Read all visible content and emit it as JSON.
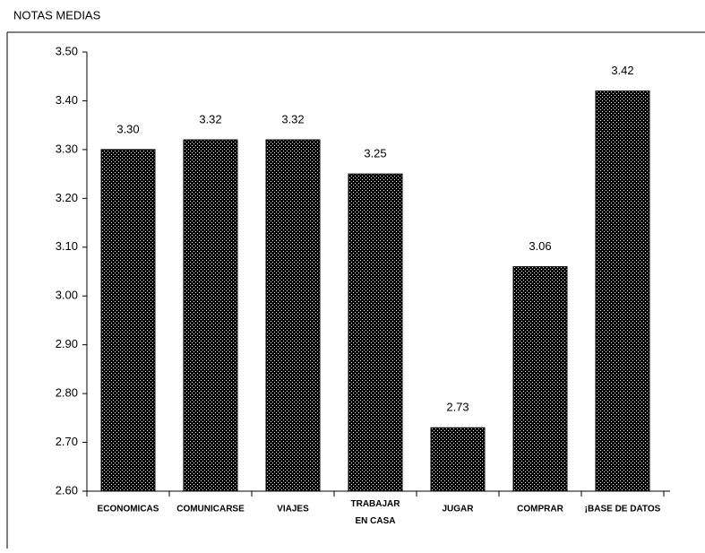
{
  "chart_data": {
    "type": "bar",
    "title": "NOTAS MEDIAS",
    "categories": [
      "ECONOMICAS",
      "COMUNICARSE",
      "VIAJES",
      "TRABAJAR\nEN CASA",
      "JUGAR",
      "COMPRAR",
      "¡BASE DE DATOS"
    ],
    "values": [
      3.3,
      3.32,
      3.32,
      3.25,
      2.73,
      3.06,
      3.42
    ],
    "value_labels": [
      "3.30",
      "3.32",
      "3.32",
      "3.25",
      "2.73",
      "3.06",
      "3.42"
    ],
    "color": "#000000",
    "ylim": [
      2.6,
      3.5
    ],
    "yticks": [
      {
        "value": 2.6,
        "label": "2.60"
      },
      {
        "value": 2.7,
        "label": "2.70"
      },
      {
        "value": 2.8,
        "label": "2.80"
      },
      {
        "value": 2.9,
        "label": "2.90"
      },
      {
        "value": 3.0,
        "label": "3.00"
      },
      {
        "value": 3.1,
        "label": "3.10"
      },
      {
        "value": 3.2,
        "label": "3.20"
      },
      {
        "value": 3.3,
        "label": "3.30"
      },
      {
        "value": 3.4,
        "label": "3.40"
      },
      {
        "value": 3.5,
        "label": "3.50"
      }
    ],
    "grid": false
  }
}
